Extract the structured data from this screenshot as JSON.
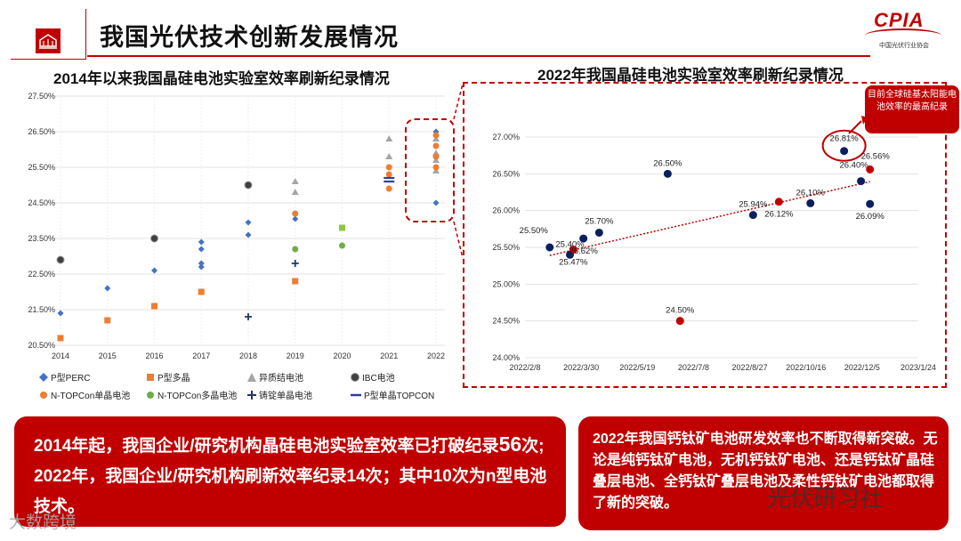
{
  "page": {
    "title": "我国光伏技术创新发展情况",
    "logo_text": "CPIA",
    "logo_subtitle": "中国光伏行业协会"
  },
  "left_title": "2014年以来我国晶硅电池实验室效率刷新纪录情况",
  "right_title": "2022年我国晶硅电池实验室效率刷新纪录情况",
  "callout": "目前全球硅基太阳能电池效率的最高纪录",
  "bottom_left": {
    "line1_pre": "2014年起，我国企业/研究机构晶硅电池实验室效率已打破纪录",
    "line1_num": "56",
    "line1_post": "次;",
    "line2": "2022年，我国企业/研究机构刷新效率纪录14次；其中10次为n型电池技术。"
  },
  "bottom_right": {
    "text": "2022年我国钙钛矿电池研发效率也不断取得新突破。无论是纯钙钛矿电池，无机钙钛矿电池、还是钙钛矿晶硅叠层电池、全钙钛矿叠层电池及柔性钙钛矿电池都取得了新的突破。"
  },
  "watermark_right": "光伏研习社",
  "watermark_left": "大数跨境",
  "colors": {
    "red": "#c00000",
    "navy": "#0a1f5c",
    "blue": "#4472c4",
    "orange": "#ed7d31",
    "gray": "#a5a5a5",
    "dark": "#404040",
    "green": "#70ad47",
    "lime": "#8dc63f"
  },
  "chart_data": [
    {
      "type": "scatter",
      "title": "2014年以来我国晶硅电池实验室效率刷新纪录情况",
      "x_categories": [
        "2014",
        "2015",
        "2016",
        "2017",
        "2018",
        "2019",
        "2020",
        "2021",
        "2022"
      ],
      "ylim": [
        20.5,
        27.5
      ],
      "yticks": [
        "20.50%",
        "21.50%",
        "22.50%",
        "23.50%",
        "24.50%",
        "25.50%",
        "26.50%",
        "27.50%"
      ],
      "ytick_values": [
        20.5,
        21.5,
        22.5,
        23.5,
        24.5,
        25.5,
        26.5,
        27.5
      ],
      "series": [
        {
          "name": "P型PERC",
          "marker": "diamond",
          "color": "#4472c4",
          "points": [
            [
              "2014",
              21.4
            ],
            [
              "2015",
              22.1
            ],
            [
              "2016",
              22.6
            ],
            [
              "2017",
              22.7
            ],
            [
              "2017",
              22.8
            ],
            [
              "2017",
              23.2
            ],
            [
              "2017",
              23.4
            ],
            [
              "2018",
              23.6
            ],
            [
              "2018",
              23.95
            ],
            [
              "2019",
              24.05
            ],
            [
              "2022",
              24.5
            ],
            [
              "2022",
              26.5
            ]
          ]
        },
        {
          "name": "P型多晶",
          "marker": "square",
          "color": "#ed7d31",
          "points": [
            [
              "2014",
              20.7
            ],
            [
              "2015",
              21.2
            ],
            [
              "2016",
              21.6
            ],
            [
              "2017",
              22.0
            ],
            [
              "2019",
              22.3
            ]
          ]
        },
        {
          "name": "异质结电池",
          "marker": "triangle",
          "color": "#a5a5a5",
          "points": [
            [
              "2019",
              24.8
            ],
            [
              "2019",
              25.1
            ],
            [
              "2021",
              25.8
            ],
            [
              "2021",
              26.3
            ],
            [
              "2022",
              25.4
            ],
            [
              "2022",
              25.7
            ],
            [
              "2022",
              25.9
            ],
            [
              "2022",
              26.3
            ]
          ]
        },
        {
          "name": "IBC电池",
          "marker": "circle-ring",
          "color": "#404040",
          "points": [
            [
              "2014",
              22.9
            ],
            [
              "2016",
              23.5
            ],
            [
              "2018",
              25.0
            ]
          ]
        },
        {
          "name": "N-TOPCon单晶电池",
          "marker": "circle",
          "color": "#ed7d31",
          "points": [
            [
              "2019",
              24.2
            ],
            [
              "2021",
              24.9
            ],
            [
              "2021",
              25.3
            ],
            [
              "2021",
              25.5
            ],
            [
              "2022",
              25.5
            ],
            [
              "2022",
              25.8
            ],
            [
              "2022",
              26.1
            ],
            [
              "2022",
              26.4
            ]
          ]
        },
        {
          "name": "N-TOPCon多晶电池",
          "marker": "circle",
          "color": "#70ad47",
          "points": [
            [
              "2019",
              23.2
            ],
            [
              "2020",
              23.3
            ]
          ]
        },
        {
          "name": "铸锭单晶电池",
          "marker": "cross",
          "color": "#1f3864",
          "points": [
            [
              "2018",
              21.3
            ],
            [
              "2019",
              22.8
            ]
          ]
        },
        {
          "name": "P型单晶TOPCON",
          "marker": "dash",
          "color": "#2f3fa0",
          "points": [
            [
              "2021",
              25.1
            ],
            [
              "2021",
              25.2
            ]
          ]
        },
        {
          "name": "",
          "marker": "square",
          "color": "#8dc63f",
          "points": [
            [
              "2020",
              23.8
            ]
          ]
        }
      ]
    },
    {
      "type": "scatter",
      "title": "2022年我国晶硅电池实验室效率刷新纪录情况",
      "xticks": [
        "2022/2/8",
        "2022/3/30",
        "2022/5/19",
        "2022/7/8",
        "2022/8/27",
        "2022/10/16",
        "2022/12/5",
        "2023/1/24"
      ],
      "ylim": [
        24.0,
        27.0
      ],
      "yticks": [
        "24.00%",
        "24.50%",
        "25.00%",
        "25.50%",
        "26.00%",
        "26.50%",
        "27.00%"
      ],
      "ytick_values": [
        24.0,
        24.5,
        25.0,
        25.5,
        26.0,
        26.5,
        27.0
      ],
      "points": [
        {
          "date": "2022/3/2",
          "value": 25.5,
          "label": "25.50%",
          "color": "#0a1f5c"
        },
        {
          "date": "2022/3/20",
          "value": 25.4,
          "label": "25.40%",
          "color": "#0a1f5c"
        },
        {
          "date": "2022/3/23",
          "value": 25.47,
          "label": "25.47%",
          "color": "#c00000"
        },
        {
          "date": "2022/4/1",
          "value": 25.62,
          "label": "25.62%",
          "color": "#0a1f5c"
        },
        {
          "date": "2022/4/15",
          "value": 25.7,
          "label": "25.70%",
          "color": "#0a1f5c"
        },
        {
          "date": "2022/6/15",
          "value": 26.5,
          "label": "26.50%",
          "color": "#0a1f5c"
        },
        {
          "date": "2022/6/26",
          "value": 24.5,
          "label": "24.50%",
          "color": "#c00000"
        },
        {
          "date": "2022/8/30",
          "value": 25.94,
          "label": "25.94%",
          "color": "#0a1f5c"
        },
        {
          "date": "2022/9/22",
          "value": 26.12,
          "label": "26.12%",
          "color": "#c00000"
        },
        {
          "date": "2022/10/20",
          "value": 26.1,
          "label": "26.10%",
          "color": "#0a1f5c"
        },
        {
          "date": "2022/11/19",
          "value": 26.81,
          "label": "26.81%",
          "color": "#0a1f5c"
        },
        {
          "date": "2022/12/4",
          "value": 26.4,
          "label": "26.40%",
          "color": "#0a1f5c"
        },
        {
          "date": "2022/12/12",
          "value": 26.56,
          "label": "26.56%",
          "color": "#c00000"
        },
        {
          "date": "2022/12/12",
          "value": 26.09,
          "label": "26.09%",
          "color": "#0a1f5c"
        }
      ],
      "trendline": true
    }
  ]
}
